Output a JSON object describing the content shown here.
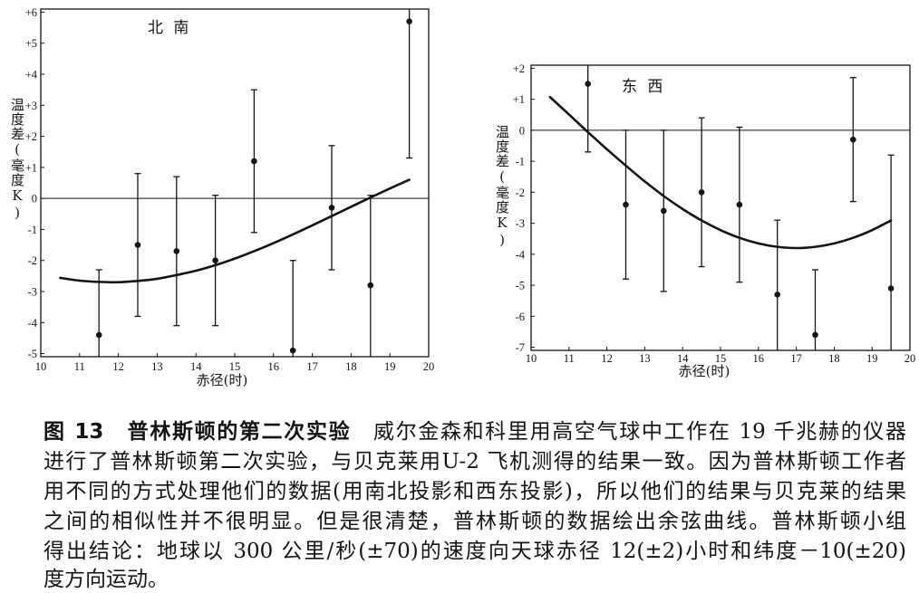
{
  "caption": {
    "figure_label": "图 13",
    "title": "普林斯顿的第二次实验",
    "line1_text": "威尔金森和科里用高空气球中工作在 19 千兆赫的仪器",
    "lines": [
      "进行了普林斯顿第二次实验，与贝克莱用U-2 飞机测得的结果一致。因为普林斯顿工作者",
      "用不同的方式处理他们的数据(用南北投影和西东投影)，所以他们的结果与贝克莱的结果",
      "之间的相似性并不很明显。但是很清楚，普林斯顿的数据绘出余弦曲线。普林斯顿小组",
      "得出结论：地球以 300 公里/秒(±70)的速度向天球赤径 12(±2)小时和纬度－10(±20)",
      "度方向运动。"
    ]
  },
  "chart_data": [
    {
      "type": "scatter",
      "panel_label": "北 南",
      "xlabel": "赤径(时)",
      "ylabel": "温度差(毫度K)",
      "xlim": [
        10,
        20
      ],
      "ylim": [
        -5.1,
        6.1
      ],
      "grid": false,
      "zero_line": true,
      "xticks": [
        10,
        11,
        12,
        13,
        14,
        15,
        16,
        17,
        18,
        19,
        20
      ],
      "xtick_labels": [
        "10",
        "11",
        "12",
        "13",
        "14",
        "15",
        "16",
        "17",
        "18",
        "19",
        "20"
      ],
      "yticks": [
        6,
        5,
        4,
        3,
        2,
        1,
        0,
        -1,
        -2,
        -3,
        -4,
        -5
      ],
      "ytick_labels": [
        "+6",
        "+5",
        "+4",
        "+3",
        "+2",
        "+1",
        "0",
        "-1",
        "-2",
        "-3",
        "-4",
        "-5"
      ],
      "points": {
        "x": [
          11.5,
          12.5,
          13.5,
          14.5,
          15.5,
          16.5,
          17.5,
          18.5,
          19.5
        ],
        "y": [
          -4.4,
          -1.5,
          -1.7,
          -2.0,
          1.2,
          -4.9,
          -0.3,
          -2.8,
          5.7
        ],
        "yerr": [
          2.1,
          2.3,
          2.4,
          2.1,
          2.3,
          2.9,
          2.0,
          2.9,
          4.4
        ]
      },
      "fit_curve": {
        "x": [
          10.5,
          11,
          11.5,
          12,
          12.5,
          13,
          13.5,
          14,
          14.5,
          15,
          15.5,
          16,
          16.5,
          17,
          17.5,
          18,
          18.5,
          19,
          19.5
        ],
        "y": [
          -2.56,
          -2.65,
          -2.69,
          -2.7,
          -2.66,
          -2.59,
          -2.47,
          -2.33,
          -2.15,
          -1.94,
          -1.7,
          -1.44,
          -1.16,
          -0.87,
          -0.57,
          -0.27,
          0.03,
          0.32,
          0.6
        ]
      }
    },
    {
      "type": "scatter",
      "panel_label": "东 西",
      "xlabel": "赤径(时)",
      "ylabel": "温度差(毫度K)",
      "xlim": [
        10,
        20
      ],
      "ylim": [
        -7.1,
        2.1
      ],
      "grid": false,
      "zero_line": true,
      "xticks": [
        10,
        11,
        12,
        13,
        14,
        15,
        16,
        17,
        18,
        19,
        20
      ],
      "xtick_labels": [
        "10",
        "11",
        "12",
        "13",
        "14",
        "15",
        "16",
        "17",
        "18",
        "19",
        "20"
      ],
      "yticks": [
        2,
        1,
        0,
        -1,
        -2,
        -3,
        -4,
        -5,
        -6,
        -7
      ],
      "ytick_labels": [
        "+2",
        "+1",
        "0",
        "-1",
        "-2",
        "-3",
        "-4",
        "-5",
        "-6",
        "-7"
      ],
      "points": {
        "x": [
          11.5,
          12.5,
          13.5,
          14.5,
          15.5,
          16.5,
          17.5,
          18.5,
          19.5
        ],
        "y": [
          1.5,
          -2.4,
          -2.6,
          -2.0,
          -2.4,
          -5.3,
          -6.6,
          -0.3,
          -5.1
        ],
        "yerr": [
          2.2,
          2.4,
          2.6,
          2.4,
          2.5,
          2.4,
          2.1,
          2.0,
          4.3
        ]
      },
      "fit_curve": {
        "x": [
          10.5,
          11,
          11.5,
          12,
          12.5,
          13,
          13.5,
          14,
          14.5,
          15,
          15.5,
          16,
          16.5,
          17,
          17.5,
          18,
          18.5,
          19,
          19.5
        ],
        "y": [
          1.07,
          0.51,
          -0.06,
          -0.61,
          -1.14,
          -1.65,
          -2.12,
          -2.54,
          -2.91,
          -3.22,
          -3.47,
          -3.65,
          -3.76,
          -3.8,
          -3.76,
          -3.65,
          -3.47,
          -3.22,
          -2.91
        ]
      }
    }
  ]
}
